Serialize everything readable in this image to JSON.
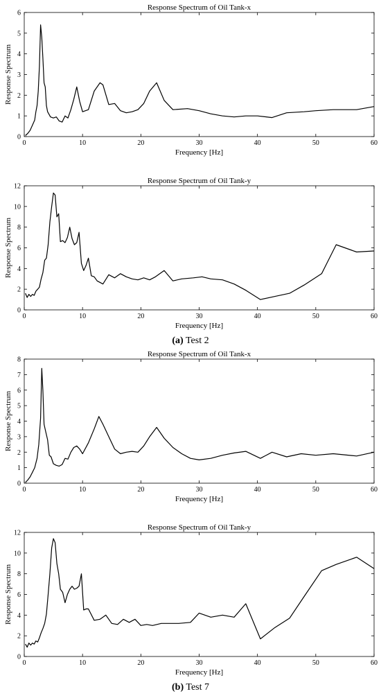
{
  "captions": {
    "a_letter": "(a)",
    "a_text": " Test 2",
    "b_letter": "(b)",
    "b_text": " Test 7"
  },
  "chart_data": [
    {
      "type": "line",
      "title": "Response Spectrum of Oil Tank-x",
      "xlabel": "Frequency [Hz]",
      "ylabel": "Response Spectrum",
      "xlim": [
        0,
        60
      ],
      "ylim": [
        0,
        6
      ],
      "xticks": [
        0,
        10,
        20,
        30,
        40,
        50,
        60
      ],
      "yticks": [
        0,
        1,
        2,
        3,
        4,
        5,
        6
      ],
      "grid": false,
      "series": [
        {
          "color": "#000000",
          "x": [
            0.2,
            0.6,
            1.0,
            1.4,
            1.8,
            2.0,
            2.2,
            2.4,
            2.6,
            2.8,
            3.0,
            3.2,
            3.4,
            3.6,
            3.8,
            4.0,
            4.5,
            5.0,
            5.5,
            6.0,
            6.5,
            7.0,
            7.5,
            8.0,
            8.5,
            9.0,
            9.5,
            10.0,
            11.0,
            12.0,
            13.0,
            13.5,
            14.5,
            15.5,
            16.5,
            17.5,
            18.5,
            19.5,
            20.5,
            21.5,
            22.7,
            24.0,
            25.5,
            28.0,
            30.0,
            32.0,
            34.0,
            36.0,
            38.0,
            40.0,
            42.5,
            45.0,
            48.0,
            50.0,
            53.0,
            57.0,
            60.0
          ],
          "values": [
            0.05,
            0.15,
            0.3,
            0.55,
            0.8,
            1.2,
            1.5,
            2.2,
            3.4,
            5.4,
            4.8,
            3.8,
            2.6,
            2.4,
            1.5,
            1.2,
            0.95,
            0.9,
            0.95,
            0.75,
            0.7,
            1.0,
            0.9,
            1.3,
            1.8,
            2.4,
            1.7,
            1.2,
            1.3,
            2.2,
            2.6,
            2.5,
            1.55,
            1.6,
            1.25,
            1.15,
            1.2,
            1.3,
            1.6,
            2.2,
            2.6,
            1.75,
            1.3,
            1.35,
            1.25,
            1.1,
            1.0,
            0.95,
            1.0,
            1.0,
            0.92,
            1.15,
            1.2,
            1.25,
            1.3,
            1.3,
            1.45
          ]
        }
      ]
    },
    {
      "type": "line",
      "title": "Response Spectrum of Oil Tank-y",
      "xlabel": "Frequency [Hz]",
      "ylabel": "Response Spectrum",
      "xlim": [
        0,
        60
      ],
      "ylim": [
        0,
        12
      ],
      "xticks": [
        0,
        10,
        20,
        30,
        40,
        50,
        60
      ],
      "yticks": [
        0,
        2,
        4,
        6,
        8,
        10,
        12
      ],
      "grid": false,
      "series": [
        {
          "color": "#000000",
          "x": [
            0.2,
            0.5,
            0.8,
            1.1,
            1.4,
            1.7,
            2.0,
            2.3,
            2.6,
            2.9,
            3.2,
            3.5,
            3.8,
            4.1,
            4.4,
            4.7,
            5.0,
            5.3,
            5.6,
            5.9,
            6.2,
            6.6,
            7.0,
            7.4,
            7.8,
            8.2,
            8.6,
            9.0,
            9.4,
            9.8,
            10.2,
            10.6,
            11.0,
            11.5,
            12.0,
            12.5,
            13.5,
            14.5,
            15.5,
            16.5,
            17.5,
            18.5,
            19.5,
            20.5,
            21.5,
            22.5,
            24.0,
            25.5,
            27.0,
            29.0,
            30.5,
            32.0,
            34.0,
            36.0,
            38.0,
            40.5,
            43.0,
            45.5,
            48.0,
            51.0,
            53.5,
            57.0,
            60.0
          ],
          "values": [
            1.6,
            1.2,
            1.5,
            1.3,
            1.5,
            1.4,
            1.8,
            2.0,
            2.2,
            3.0,
            3.6,
            4.8,
            5.0,
            6.3,
            8.5,
            10.0,
            11.3,
            11.1,
            9.0,
            9.3,
            6.6,
            6.7,
            6.5,
            7.0,
            8.0,
            6.9,
            6.3,
            6.5,
            7.5,
            4.5,
            3.8,
            4.3,
            5.0,
            3.3,
            3.2,
            2.8,
            2.5,
            3.4,
            3.1,
            3.5,
            3.2,
            3.0,
            2.9,
            3.1,
            2.9,
            3.2,
            3.8,
            2.8,
            3.0,
            3.1,
            3.2,
            3.0,
            2.9,
            2.5,
            1.9,
            1.0,
            1.3,
            1.6,
            2.4,
            3.5,
            6.3,
            5.6,
            5.7
          ]
        }
      ]
    },
    {
      "type": "line",
      "title": "Response Spectrum of Oil Tank-x",
      "xlabel": "Frequency [Hz]",
      "ylabel": "Response Spectrum",
      "xlim": [
        0,
        60
      ],
      "ylim": [
        0,
        8
      ],
      "xticks": [
        0,
        10,
        20,
        30,
        40,
        50,
        60
      ],
      "yticks": [
        0,
        1,
        2,
        3,
        4,
        5,
        6,
        7,
        8
      ],
      "grid": false,
      "series": [
        {
          "color": "#000000",
          "x": [
            0.2,
            0.6,
            1.0,
            1.4,
            1.8,
            2.2,
            2.5,
            2.8,
            3.0,
            3.2,
            3.4,
            3.7,
            4.0,
            4.3,
            4.6,
            5.0,
            5.5,
            6.0,
            6.5,
            7.0,
            7.5,
            8.0,
            8.5,
            9.0,
            9.5,
            10.0,
            11.0,
            12.0,
            12.8,
            13.5,
            14.5,
            15.5,
            16.5,
            17.5,
            18.5,
            19.5,
            20.5,
            21.5,
            22.7,
            24.0,
            25.5,
            27.0,
            28.5,
            30.0,
            32.0,
            34.0,
            36.0,
            38.0,
            40.5,
            42.5,
            45.0,
            47.5,
            50.0,
            53.0,
            57.0,
            60.0
          ],
          "values": [
            0.05,
            0.2,
            0.4,
            0.7,
            1.0,
            1.6,
            2.5,
            4.2,
            7.4,
            6.0,
            3.8,
            3.3,
            2.8,
            1.8,
            1.7,
            1.25,
            1.15,
            1.1,
            1.2,
            1.6,
            1.55,
            2.0,
            2.3,
            2.4,
            2.2,
            1.9,
            2.6,
            3.5,
            4.3,
            3.8,
            3.0,
            2.2,
            1.9,
            2.0,
            2.05,
            2.0,
            2.4,
            3.0,
            3.6,
            2.9,
            2.3,
            1.9,
            1.6,
            1.5,
            1.6,
            1.8,
            1.95,
            2.05,
            1.6,
            2.0,
            1.7,
            1.9,
            1.8,
            1.9,
            1.75,
            2.0
          ]
        }
      ]
    },
    {
      "type": "line",
      "title": "Response Spectrum of Oil Tank-y",
      "xlabel": "Frequency [Hz]",
      "ylabel": "Response Spectrum",
      "xlim": [
        0,
        60
      ],
      "ylim": [
        0,
        12
      ],
      "xticks": [
        0,
        10,
        20,
        30,
        40,
        50,
        60
      ],
      "yticks": [
        0,
        2,
        4,
        6,
        8,
        10,
        12
      ],
      "grid": false,
      "series": [
        {
          "color": "#000000",
          "x": [
            0.2,
            0.5,
            0.8,
            1.1,
            1.4,
            1.7,
            2.0,
            2.3,
            2.6,
            2.9,
            3.2,
            3.5,
            3.8,
            4.1,
            4.4,
            4.7,
            5.0,
            5.3,
            5.6,
            5.9,
            6.2,
            6.6,
            7.0,
            7.4,
            7.8,
            8.2,
            8.6,
            9.0,
            9.4,
            9.8,
            10.2,
            10.6,
            11.0,
            12.0,
            13.0,
            14.0,
            15.0,
            16.0,
            17.0,
            18.0,
            19.0,
            20.0,
            21.0,
            22.0,
            23.5,
            25.0,
            26.5,
            28.5,
            30.0,
            32.0,
            34.0,
            36.0,
            38.0,
            40.5,
            43.0,
            45.5,
            48.0,
            51.0,
            53.5,
            57.0,
            60.0
          ],
          "values": [
            1.2,
            0.9,
            1.3,
            1.1,
            1.3,
            1.2,
            1.5,
            1.4,
            1.8,
            2.3,
            2.7,
            3.2,
            4.1,
            6.0,
            8.0,
            10.5,
            11.4,
            11.0,
            9.0,
            8.0,
            6.5,
            6.2,
            5.2,
            6.0,
            6.5,
            6.8,
            6.5,
            6.6,
            6.8,
            8.0,
            4.5,
            4.6,
            4.6,
            3.5,
            3.6,
            4.0,
            3.2,
            3.1,
            3.6,
            3.3,
            3.6,
            3.0,
            3.1,
            3.0,
            3.2,
            3.2,
            3.2,
            3.3,
            4.2,
            3.8,
            4.0,
            3.8,
            5.1,
            1.7,
            2.8,
            3.7,
            5.8,
            8.3,
            8.9,
            9.6,
            8.5
          ]
        }
      ]
    }
  ]
}
